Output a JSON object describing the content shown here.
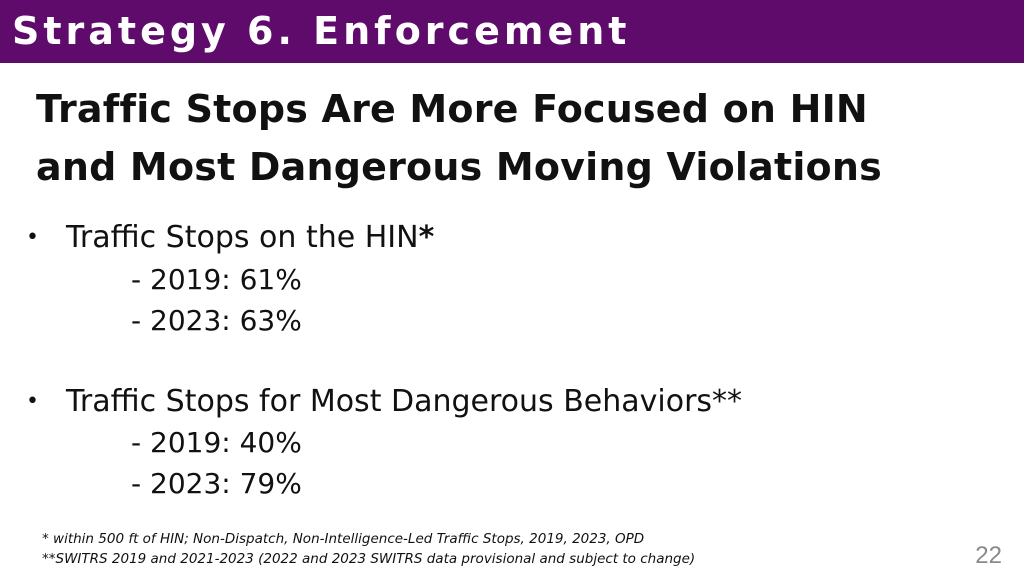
{
  "header": {
    "title": "Strategy 6. Enforcement",
    "bar_color": "#5e0b6b"
  },
  "slide": {
    "title_line1": "Traffic Stops Are More Focused on HIN",
    "title_line2": "and Most Dangerous Moving Violations"
  },
  "bullets": [
    {
      "marker": "•",
      "text": "Traffic Stops on the HIN",
      "suffix": "*",
      "items": [
        "- 2019: 61%",
        "- 2023: 63%"
      ]
    },
    {
      "marker": "•",
      "text": "Traffic Stops for Most Dangerous Behaviors**",
      "suffix": "",
      "items": [
        "- 2019: 40%",
        "- 2023: 79%"
      ]
    }
  ],
  "footnotes": [
    "* within 500 ft of HIN; Non-Dispatch, Non-Intelligence-Led Traffic Stops, 2019, 2023, OPD",
    "**SWITRS 2019 and 2021-2023 (2022 and 2023 SWITRS data provisional and subject to change)"
  ],
  "page_number": "22"
}
